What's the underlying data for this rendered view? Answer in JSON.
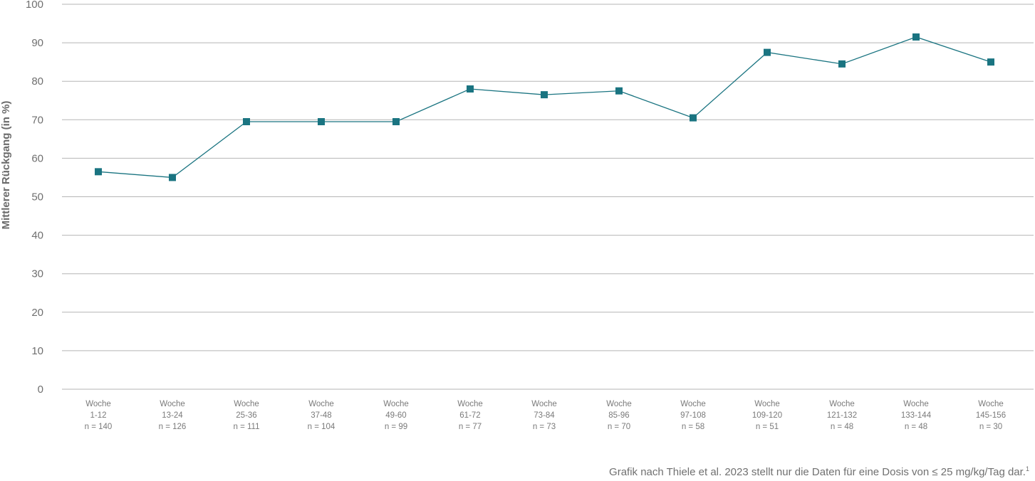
{
  "chart_data": {
    "type": "line",
    "ylabel": "Mittlerer Rückgang (in %)",
    "xlabel": "",
    "ylim": [
      0,
      100
    ],
    "yticks": [
      0,
      10,
      20,
      30,
      40,
      50,
      60,
      70,
      80,
      90,
      100
    ],
    "grid": "horizontal",
    "categories": [
      {
        "line1": "Woche",
        "line2": "1-12",
        "line3": "n = 140"
      },
      {
        "line1": "Woche",
        "line2": "13-24",
        "line3": "n = 126"
      },
      {
        "line1": "Woche",
        "line2": "25-36",
        "line3": "n = 111"
      },
      {
        "line1": "Woche",
        "line2": "37-48",
        "line3": "n = 104"
      },
      {
        "line1": "Woche",
        "line2": "49-60",
        "line3": "n = 99"
      },
      {
        "line1": "Woche",
        "line2": "61-72",
        "line3": "n = 77"
      },
      {
        "line1": "Woche",
        "line2": "73-84",
        "line3": "n = 73"
      },
      {
        "line1": "Woche",
        "line2": "85-96",
        "line3": "n = 70"
      },
      {
        "line1": "Woche",
        "line2": "97-108",
        "line3": "n = 58"
      },
      {
        "line1": "Woche",
        "line2": "109-120",
        "line3": "n = 51"
      },
      {
        "line1": "Woche",
        "line2": "121-132",
        "line3": "n = 48"
      },
      {
        "line1": "Woche",
        "line2": "133-144",
        "line3": "n = 48"
      },
      {
        "line1": "Woche",
        "line2": "145-156",
        "line3": "n = 30"
      }
    ],
    "series": [
      {
        "values": [
          56.5,
          55,
          69.5,
          69.5,
          69.5,
          78,
          76.5,
          77.5,
          70.5,
          87.5,
          84.5,
          91.5,
          85
        ]
      }
    ],
    "colors": {
      "series": "#1a7481",
      "grid": "#b5b5b5"
    }
  },
  "footnote": {
    "text": "Grafik nach Thiele et al. 2023 stellt nur die Daten für eine Dosis von ≤ 25 mg/kg/Tag dar.",
    "ref": "1"
  }
}
